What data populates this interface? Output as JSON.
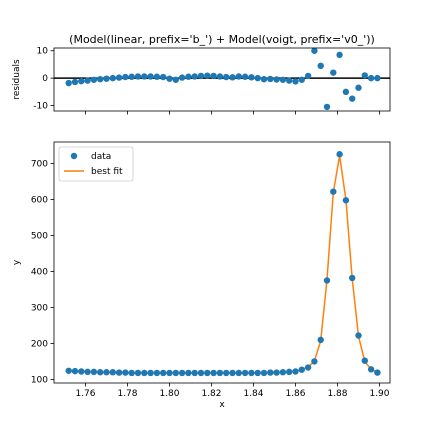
{
  "chart_data": [
    {
      "type": "scatter",
      "title": "(Model(linear, prefix='b_') + Model(voigt, prefix='v0_'))",
      "xlabel": "",
      "ylabel": "residuals",
      "xlim": [
        1.745,
        1.905
      ],
      "ylim": [
        -12,
        11
      ],
      "yticks": [
        10,
        0,
        -10
      ],
      "zero_line": true,
      "grid": false,
      "series": [
        {
          "color": "#1f77b4",
          "x": [
            1.752,
            1.755,
            1.758,
            1.761,
            1.764,
            1.767,
            1.77,
            1.773,
            1.776,
            1.779,
            1.782,
            1.785,
            1.788,
            1.791,
            1.794,
            1.797,
            1.8,
            1.803,
            1.806,
            1.809,
            1.812,
            1.815,
            1.818,
            1.821,
            1.824,
            1.827,
            1.83,
            1.833,
            1.836,
            1.839,
            1.842,
            1.845,
            1.848,
            1.851,
            1.854,
            1.857,
            1.86,
            1.863,
            1.866,
            1.869,
            1.872,
            1.875,
            1.878,
            1.881,
            1.884,
            1.887,
            1.89,
            1.893,
            1.896,
            1.899
          ],
          "y": [
            -1.8,
            -1.4,
            -1.1,
            -0.9,
            -0.6,
            -0.4,
            -0.2,
            0.0,
            0.2,
            0.4,
            0.5,
            0.6,
            0.6,
            0.6,
            0.5,
            0.4,
            -0.2,
            -0.6,
            0.2,
            0.5,
            0.6,
            0.8,
            0.9,
            0.8,
            0.6,
            0.4,
            0.3,
            0.6,
            0.5,
            0.3,
            0.0,
            -0.4,
            -0.3,
            -0.5,
            -0.6,
            -0.9,
            -1.2,
            -0.6,
            0.8,
            10.0,
            4.5,
            -10.5,
            2.0,
            8.5,
            -5.0,
            -7.5,
            -3.5,
            1.0,
            0.0,
            0.0
          ]
        }
      ]
    },
    {
      "type": "line",
      "title": "",
      "xlabel": "x",
      "ylabel": "y",
      "xlim": [
        1.745,
        1.905
      ],
      "ylim": [
        90,
        760
      ],
      "xticks": [
        1.76,
        1.78,
        1.8,
        1.82,
        1.84,
        1.86,
        1.88,
        1.9
      ],
      "xtick_labels": [
        "1.76",
        "1.78",
        "1.80",
        "1.82",
        "1.84",
        "1.86",
        "1.88",
        "1.90"
      ],
      "yticks": [
        100,
        200,
        300,
        400,
        500,
        600,
        700
      ],
      "grid": false,
      "legend_position": "top-left",
      "x": [
        1.752,
        1.755,
        1.758,
        1.761,
        1.764,
        1.767,
        1.77,
        1.773,
        1.776,
        1.779,
        1.782,
        1.785,
        1.788,
        1.791,
        1.794,
        1.797,
        1.8,
        1.803,
        1.806,
        1.809,
        1.812,
        1.815,
        1.818,
        1.821,
        1.824,
        1.827,
        1.83,
        1.833,
        1.836,
        1.839,
        1.842,
        1.845,
        1.848,
        1.851,
        1.854,
        1.857,
        1.86,
        1.863,
        1.866,
        1.869,
        1.872,
        1.875,
        1.878,
        1.881,
        1.884,
        1.887,
        1.89,
        1.893,
        1.896,
        1.899
      ],
      "series": [
        {
          "name": "data",
          "style": "markers",
          "color": "#1f77b4",
          "y": [
            124,
            123,
            122,
            121,
            121,
            120,
            120,
            120,
            119,
            119,
            118,
            118,
            118,
            118,
            118,
            118,
            118,
            118,
            118,
            118,
            118,
            118,
            118,
            118,
            118,
            118,
            118,
            118,
            118,
            118,
            118,
            118,
            119,
            119,
            120,
            121,
            122,
            127,
            133,
            150,
            210,
            375,
            622,
            726,
            598,
            382,
            222,
            152,
            128,
            119
          ]
        },
        {
          "name": "best fit",
          "style": "line",
          "color": "#ff7f0e",
          "y": [
            126,
            124,
            123,
            122,
            121,
            121,
            120,
            120,
            119,
            119,
            118,
            118,
            118,
            118,
            118,
            118,
            118,
            118,
            118,
            118,
            118,
            118,
            118,
            118,
            118,
            118,
            118,
            118,
            118,
            118,
            118,
            118,
            119,
            119,
            120,
            121,
            123,
            128,
            134,
            151,
            207,
            378,
            620,
            722,
            600,
            380,
            220,
            150,
            128,
            120
          ]
        }
      ]
    }
  ]
}
